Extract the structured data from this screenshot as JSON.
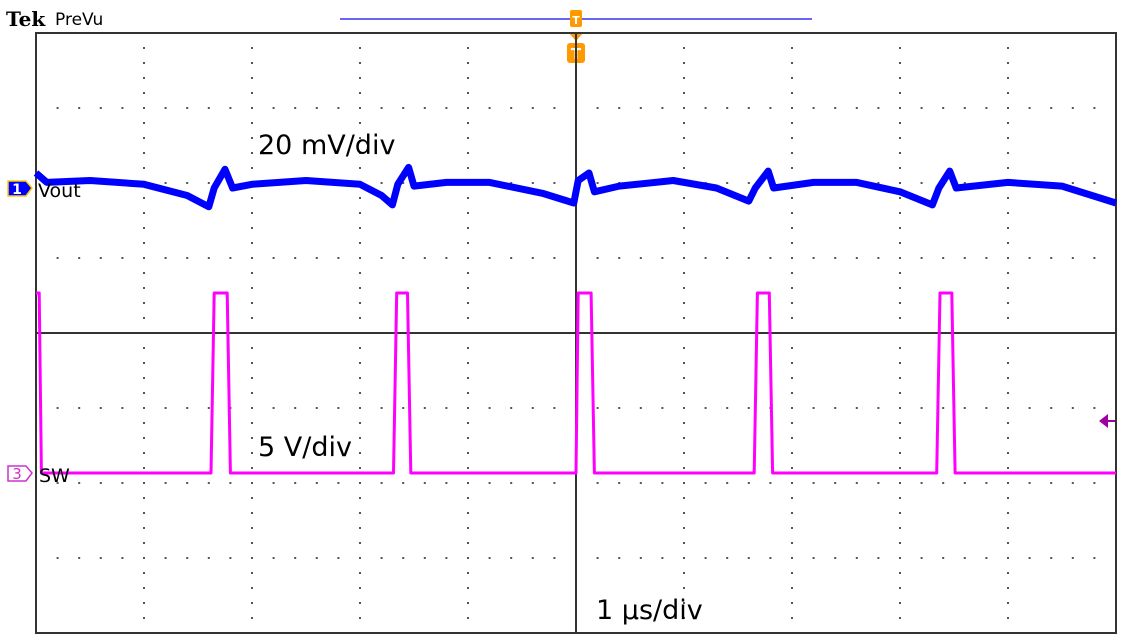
{
  "header": {
    "brand": "Tek",
    "mode": "PreVu"
  },
  "colors": {
    "ch1": "#0000ff",
    "ch3": "#ff00ff",
    "trigger": "#ff9900",
    "trigger_level": "#a000a0",
    "record_bar": "#3333ee"
  },
  "chart_data": {
    "type": "line",
    "title": "",
    "xlabel": "",
    "ylabel": "",
    "grid": true,
    "x_unit": "µs",
    "xlim": [
      -5,
      5
    ],
    "divisions": {
      "horizontal": 10,
      "vertical": 8
    },
    "annotations": {
      "ch1_scale": "20 mV/div",
      "ch3_scale": "5 V/div",
      "timebase": "1 µs/div"
    },
    "trigger_marker": "T",
    "series": [
      {
        "name": "Vout",
        "channel": "1",
        "unit": "mV",
        "scale_per_div": 20,
        "points": [
          [
            -5.0,
            4
          ],
          [
            -4.9,
            1.5
          ],
          [
            -4.5,
            2
          ],
          [
            -4.0,
            1
          ],
          [
            -3.6,
            -2
          ],
          [
            -3.4,
            -5
          ],
          [
            -3.35,
            0
          ],
          [
            -3.25,
            5
          ],
          [
            -3.18,
            0
          ],
          [
            -3.0,
            1
          ],
          [
            -2.5,
            2
          ],
          [
            -2.0,
            1
          ],
          [
            -1.8,
            -2
          ],
          [
            -1.7,
            -4.5
          ],
          [
            -1.65,
            1
          ],
          [
            -1.55,
            5.5
          ],
          [
            -1.5,
            0.5
          ],
          [
            -1.2,
            1.5
          ],
          [
            -0.8,
            1.5
          ],
          [
            -0.3,
            -1.5
          ],
          [
            -0.02,
            -4
          ],
          [
            0.02,
            2
          ],
          [
            0.12,
            4
          ],
          [
            0.17,
            -1
          ],
          [
            0.4,
            0.5
          ],
          [
            0.9,
            2
          ],
          [
            1.3,
            0
          ],
          [
            1.6,
            -3.5
          ],
          [
            1.66,
            0
          ],
          [
            1.78,
            4.5
          ],
          [
            1.83,
            0
          ],
          [
            2.2,
            1.5
          ],
          [
            2.6,
            1.5
          ],
          [
            3.0,
            -1
          ],
          [
            3.3,
            -4.5
          ],
          [
            3.36,
            0
          ],
          [
            3.46,
            4.5
          ],
          [
            3.52,
            0
          ],
          [
            4.0,
            1.5
          ],
          [
            4.5,
            0.5
          ],
          [
            5.0,
            -4
          ]
        ]
      },
      {
        "name": "SW",
        "channel": "3",
        "unit": "V",
        "scale_per_div": 5,
        "points": [
          [
            -5.0,
            12
          ],
          [
            -4.97,
            12
          ],
          [
            -4.95,
            0
          ],
          [
            -3.38,
            0
          ],
          [
            -3.35,
            12
          ],
          [
            -3.23,
            12
          ],
          [
            -3.2,
            0
          ],
          [
            -1.69,
            0
          ],
          [
            -1.66,
            12
          ],
          [
            -1.56,
            12
          ],
          [
            -1.53,
            0
          ],
          [
            0.0,
            0
          ],
          [
            0.02,
            12
          ],
          [
            0.14,
            12
          ],
          [
            0.17,
            0
          ],
          [
            1.65,
            0
          ],
          [
            1.68,
            12
          ],
          [
            1.79,
            12
          ],
          [
            1.82,
            0
          ],
          [
            3.34,
            0
          ],
          [
            3.37,
            12
          ],
          [
            3.48,
            12
          ],
          [
            3.51,
            0
          ],
          [
            5.0,
            0
          ]
        ]
      }
    ]
  }
}
